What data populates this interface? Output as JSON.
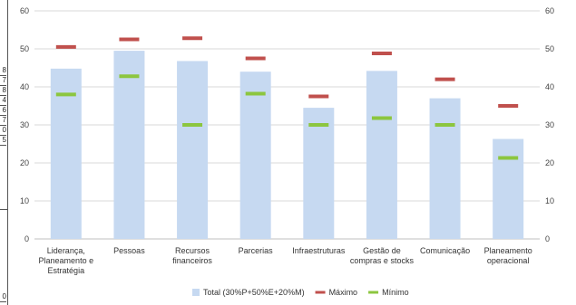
{
  "strip_cells": [
    "8",
    "7",
    "8",
    "4",
    "6",
    "7",
    "0",
    "5",
    "0"
  ],
  "chart_data": {
    "type": "bar",
    "categories": [
      [
        "Liderança,",
        "Planeamento e",
        "Estratégia"
      ],
      [
        "Pessoas"
      ],
      [
        "Recursos",
        "financeiros"
      ],
      [
        "Parcerias"
      ],
      [
        "Infraestruturas"
      ],
      [
        "Gestão de",
        "compras e stocks"
      ],
      [
        "Comunicação"
      ],
      [
        "Planeamento",
        "operacional"
      ]
    ],
    "series": [
      {
        "name": "Total (30%P+50%E+20%M)",
        "type": "bar",
        "color": "#c6d9f1",
        "values": [
          44.8,
          49.5,
          46.8,
          44.0,
          34.5,
          44.2,
          37.0,
          26.3
        ]
      },
      {
        "name": "Máximo",
        "type": "marker",
        "color": "#c0504d",
        "values": [
          50.5,
          52.5,
          52.8,
          47.5,
          37.5,
          48.8,
          42.0,
          35.0
        ]
      },
      {
        "name": "Mínimo",
        "type": "marker",
        "color": "#8cc63f",
        "values": [
          38.0,
          42.8,
          30.0,
          38.2,
          30.0,
          31.8,
          30.0,
          21.3
        ]
      }
    ],
    "ylim": [
      0,
      60
    ],
    "yticks": [
      0,
      10,
      20,
      30,
      40,
      50,
      60
    ],
    "y_axis_both_sides": true,
    "grid": true,
    "legend_position": "bottom"
  }
}
